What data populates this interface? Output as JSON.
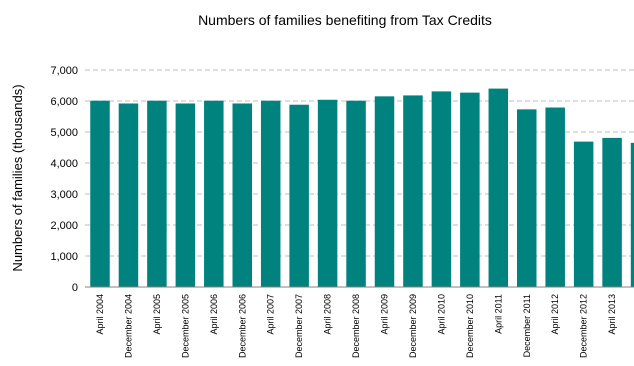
{
  "chart_data": {
    "type": "bar",
    "title": "Numbers of families benefiting from Tax Credits",
    "xlabel": "",
    "ylabel": "Numbers of families (thousands)",
    "ylim": [
      0,
      7000
    ],
    "yticks": [
      0,
      1000,
      2000,
      3000,
      4000,
      5000,
      6000,
      7000
    ],
    "ytick_labels": [
      "0",
      "1,000",
      "2,000",
      "3,000",
      "4,000",
      "5,000",
      "6,000",
      "7,000"
    ],
    "grid": true,
    "bar_color": "#00827f",
    "categories": [
      "April 2004",
      "December 2004",
      "April 2005",
      "December 2005",
      "April 2006",
      "December 2006",
      "April 2007",
      "December 2007",
      "April 2008",
      "December 2008",
      "April 2009",
      "December 2009",
      "April 2010",
      "December 2010",
      "April 2011",
      "December 2011",
      "April 2012",
      "December 2012",
      "April 2013",
      ""
    ],
    "values": [
      6010,
      5920,
      6010,
      5920,
      6010,
      5920,
      6010,
      5880,
      6040,
      6010,
      6150,
      6180,
      6310,
      6270,
      6400,
      5730,
      5790,
      4690,
      4810,
      4650
    ]
  }
}
